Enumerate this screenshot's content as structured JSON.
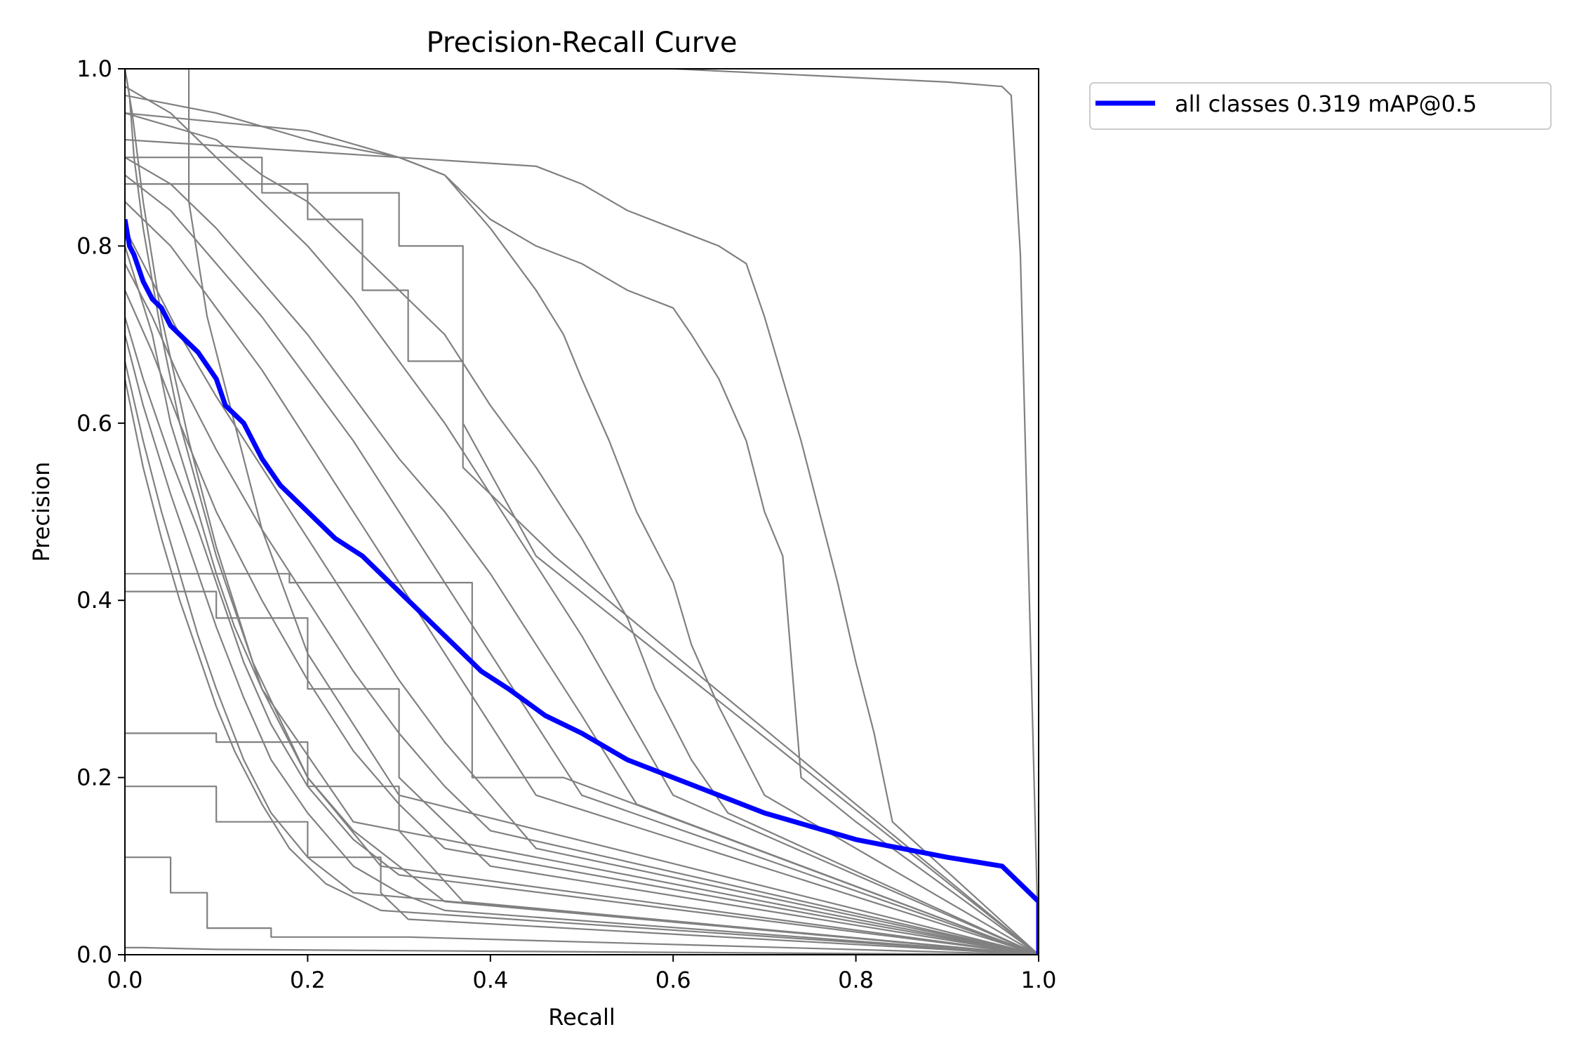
{
  "chart_data": {
    "type": "line",
    "title": "Precision-Recall Curve",
    "xlabel": "Recall",
    "ylabel": "Precision",
    "xlim": [
      0,
      1
    ],
    "ylim": [
      0,
      1
    ],
    "xticks": [
      "0.0",
      "0.2",
      "0.4",
      "0.6",
      "0.8",
      "1.0"
    ],
    "yticks": [
      "0.0",
      "0.2",
      "0.4",
      "0.6",
      "0.8",
      "1.0"
    ],
    "grid": false,
    "legend_placement": "outside-top-right",
    "colors": {
      "all_classes": "#0000ff",
      "per_class": "#808080"
    },
    "legend": [
      {
        "label": "all classes 0.319 mAP@0.5",
        "color": "#0000ff"
      }
    ],
    "series": [
      {
        "name": "all classes 0.319 mAP@0.5",
        "color": "#0000ff",
        "x": [
          0.0,
          0.005,
          0.01,
          0.02,
          0.03,
          0.04,
          0.05,
          0.06,
          0.08,
          0.1,
          0.11,
          0.13,
          0.15,
          0.17,
          0.2,
          0.23,
          0.26,
          0.29,
          0.31,
          0.33,
          0.37,
          0.39,
          0.42,
          0.46,
          0.5,
          0.55,
          0.6,
          0.65,
          0.7,
          0.75,
          0.8,
          0.9,
          0.96,
          0.97,
          1.0,
          1.0
        ],
        "y": [
          0.83,
          0.8,
          0.79,
          0.76,
          0.74,
          0.73,
          0.71,
          0.7,
          0.68,
          0.65,
          0.62,
          0.6,
          0.56,
          0.53,
          0.5,
          0.47,
          0.45,
          0.42,
          0.4,
          0.38,
          0.34,
          0.32,
          0.3,
          0.27,
          0.25,
          0.22,
          0.2,
          0.18,
          0.16,
          0.145,
          0.13,
          0.11,
          0.1,
          0.09,
          0.06,
          0.0
        ]
      },
      {
        "x": [
          0.0,
          0.5,
          0.6,
          0.7,
          0.8,
          0.9,
          0.96,
          0.97,
          0.98,
          1.0
        ],
        "y": [
          1.0,
          1.0,
          1.0,
          0.995,
          0.99,
          0.985,
          0.98,
          0.97,
          0.79,
          0.0
        ]
      },
      {
        "x": [
          0.0,
          0.3,
          0.45,
          0.5,
          0.55,
          0.6,
          0.65,
          0.68,
          0.7,
          0.72,
          0.74,
          0.76,
          0.78,
          0.8,
          0.82,
          0.84,
          1.0
        ],
        "y": [
          0.92,
          0.9,
          0.89,
          0.87,
          0.84,
          0.82,
          0.8,
          0.78,
          0.72,
          0.65,
          0.58,
          0.5,
          0.42,
          0.33,
          0.25,
          0.15,
          0.0
        ]
      },
      {
        "x": [
          0.0,
          0.2,
          0.3,
          0.35,
          0.4,
          0.45,
          0.5,
          0.55,
          0.6,
          0.62,
          0.65,
          0.68,
          0.7,
          0.72,
          0.74,
          0.8,
          1.0
        ],
        "y": [
          0.95,
          0.93,
          0.9,
          0.88,
          0.83,
          0.8,
          0.78,
          0.75,
          0.73,
          0.7,
          0.65,
          0.58,
          0.5,
          0.45,
          0.2,
          0.15,
          0.0
        ]
      },
      {
        "x": [
          0.0,
          0.1,
          0.2,
          0.3,
          0.35,
          0.4,
          0.45,
          0.48,
          0.5,
          0.53,
          0.56,
          0.6,
          0.62,
          0.65,
          0.68,
          0.7,
          1.0
        ],
        "y": [
          0.97,
          0.95,
          0.92,
          0.9,
          0.88,
          0.82,
          0.75,
          0.7,
          0.65,
          0.58,
          0.5,
          0.42,
          0.35,
          0.28,
          0.22,
          0.18,
          0.0
        ]
      },
      {
        "x": [
          0.0,
          0.1,
          0.15,
          0.2,
          0.25,
          0.3,
          0.35,
          0.4,
          0.45,
          0.5,
          0.55,
          0.58,
          0.62,
          0.66,
          1.0
        ],
        "y": [
          0.95,
          0.92,
          0.88,
          0.85,
          0.8,
          0.75,
          0.7,
          0.62,
          0.55,
          0.47,
          0.38,
          0.3,
          0.22,
          0.16,
          0.0
        ]
      },
      {
        "x": [
          0.0,
          0.05,
          0.1,
          0.15,
          0.2,
          0.25,
          0.3,
          0.35,
          0.4,
          0.45,
          0.5,
          0.55,
          0.6,
          1.0
        ],
        "y": [
          0.98,
          0.95,
          0.9,
          0.85,
          0.8,
          0.74,
          0.67,
          0.6,
          0.52,
          0.44,
          0.36,
          0.27,
          0.18,
          0.0
        ]
      },
      {
        "x": [
          0.0,
          0.05,
          0.1,
          0.15,
          0.2,
          0.25,
          0.3,
          0.35,
          0.4,
          0.45,
          0.5,
          0.56,
          1.0
        ],
        "y": [
          0.9,
          0.87,
          0.82,
          0.76,
          0.7,
          0.63,
          0.56,
          0.5,
          0.43,
          0.35,
          0.27,
          0.17,
          0.0
        ]
      },
      {
        "x": [
          0.0,
          0.05,
          0.1,
          0.15,
          0.2,
          0.25,
          0.3,
          0.35,
          0.4,
          0.45,
          0.5,
          1.0
        ],
        "y": [
          0.88,
          0.84,
          0.78,
          0.72,
          0.65,
          0.58,
          0.5,
          0.42,
          0.34,
          0.26,
          0.18,
          0.0
        ]
      },
      {
        "x": [
          0.0,
          0.05,
          0.1,
          0.15,
          0.2,
          0.25,
          0.3,
          0.35,
          0.4,
          0.45,
          1.0
        ],
        "y": [
          0.85,
          0.8,
          0.73,
          0.66,
          0.58,
          0.5,
          0.42,
          0.34,
          0.26,
          0.18,
          0.0
        ]
      },
      {
        "x": [
          0.0,
          0.03,
          0.06,
          0.1,
          0.15,
          0.2,
          0.25,
          0.3,
          0.35,
          0.4,
          0.45,
          1.0
        ],
        "y": [
          0.82,
          0.76,
          0.7,
          0.63,
          0.55,
          0.47,
          0.39,
          0.31,
          0.24,
          0.18,
          0.12,
          0.0
        ]
      },
      {
        "x": [
          0.0,
          0.03,
          0.06,
          0.1,
          0.15,
          0.2,
          0.25,
          0.3,
          0.35,
          0.4,
          1.0
        ],
        "y": [
          0.78,
          0.72,
          0.65,
          0.57,
          0.48,
          0.4,
          0.32,
          0.25,
          0.19,
          0.14,
          0.0
        ]
      },
      {
        "x": [
          0.0,
          0.03,
          0.06,
          0.1,
          0.15,
          0.2,
          0.25,
          0.3,
          0.35,
          1.0
        ],
        "y": [
          0.75,
          0.68,
          0.6,
          0.5,
          0.4,
          0.31,
          0.23,
          0.17,
          0.12,
          0.0
        ]
      },
      {
        "x": [
          0.0,
          0.02,
          0.05,
          0.08,
          0.1,
          0.13,
          0.16,
          0.2,
          0.25,
          0.3,
          1.0
        ],
        "y": [
          0.72,
          0.65,
          0.56,
          0.48,
          0.42,
          0.33,
          0.26,
          0.19,
          0.13,
          0.09,
          0.0
        ]
      },
      {
        "x": [
          0.0,
          0.02,
          0.05,
          0.08,
          0.1,
          0.13,
          0.16,
          0.2,
          0.25,
          0.3,
          0.35,
          1.0
        ],
        "y": [
          0.7,
          0.62,
          0.52,
          0.43,
          0.37,
          0.29,
          0.22,
          0.16,
          0.1,
          0.07,
          0.05,
          0.0
        ]
      },
      {
        "x": [
          0.0,
          0.02,
          0.04,
          0.06,
          0.08,
          0.1,
          0.13,
          0.16,
          0.2,
          0.25,
          1.0
        ],
        "y": [
          0.67,
          0.58,
          0.5,
          0.43,
          0.36,
          0.3,
          0.22,
          0.16,
          0.11,
          0.07,
          0.0
        ]
      },
      {
        "x": [
          0.0,
          0.02,
          0.04,
          0.06,
          0.08,
          0.1,
          0.12,
          0.15,
          0.18,
          0.22,
          0.28,
          1.0
        ],
        "y": [
          0.65,
          0.55,
          0.47,
          0.4,
          0.34,
          0.28,
          0.23,
          0.17,
          0.12,
          0.08,
          0.05,
          0.0
        ]
      },
      {
        "x": [
          0.0,
          0.03,
          0.05,
          0.08,
          0.1,
          0.12,
          0.15,
          0.18,
          0.2,
          0.25,
          0.3,
          0.35,
          1.0
        ],
        "y": [
          0.8,
          0.7,
          0.6,
          0.5,
          0.43,
          0.37,
          0.3,
          0.24,
          0.2,
          0.14,
          0.1,
          0.06,
          0.0
        ]
      },
      {
        "x": [
          0.0,
          0.15,
          0.15,
          0.3,
          0.3,
          0.37,
          0.37,
          0.45,
          1.0
        ],
        "y": [
          0.9,
          0.9,
          0.86,
          0.86,
          0.8,
          0.8,
          0.6,
          0.45,
          0.0
        ]
      },
      {
        "x": [
          0.0,
          0.2,
          0.2,
          0.26,
          0.26,
          0.31,
          0.31,
          0.37,
          0.37,
          0.47,
          1.0
        ],
        "y": [
          0.87,
          0.87,
          0.83,
          0.83,
          0.75,
          0.75,
          0.67,
          0.67,
          0.55,
          0.45,
          0.0
        ]
      },
      {
        "x": [
          0.0,
          0.18,
          0.18,
          0.29,
          0.29,
          0.38,
          0.38,
          0.48,
          1.0
        ],
        "y": [
          0.43,
          0.43,
          0.42,
          0.42,
          0.42,
          0.42,
          0.2,
          0.2,
          0.0
        ]
      },
      {
        "x": [
          0.0,
          0.1,
          0.1,
          0.2,
          0.2,
          0.3,
          0.3,
          0.4,
          1.0
        ],
        "y": [
          0.41,
          0.41,
          0.38,
          0.38,
          0.3,
          0.3,
          0.2,
          0.1,
          0.0
        ]
      },
      {
        "x": [
          0.0,
          0.1,
          0.1,
          0.2,
          0.2,
          0.3,
          0.3,
          0.37,
          1.0
        ],
        "y": [
          0.25,
          0.25,
          0.24,
          0.24,
          0.19,
          0.19,
          0.14,
          0.06,
          0.0
        ]
      },
      {
        "x": [
          0.0,
          0.1,
          0.1,
          0.2,
          0.2,
          0.28,
          0.28,
          0.31,
          1.0
        ],
        "y": [
          0.19,
          0.19,
          0.15,
          0.15,
          0.11,
          0.11,
          0.07,
          0.04,
          0.0
        ]
      },
      {
        "x": [
          0.0,
          0.05,
          0.05,
          0.09,
          0.09,
          0.16,
          0.16,
          0.31,
          1.0
        ],
        "y": [
          0.11,
          0.11,
          0.07,
          0.07,
          0.03,
          0.03,
          0.02,
          0.02,
          0.0
        ]
      },
      {
        "x": [
          0.0,
          0.02,
          0.1,
          0.4,
          1.0
        ],
        "y": [
          0.008,
          0.008,
          0.006,
          0.004,
          0.0
        ]
      },
      {
        "x": [
          0.0,
          0.005,
          0.01,
          0.02,
          0.04,
          0.06,
          0.1,
          0.15,
          0.25,
          1.0
        ],
        "y": [
          1.0,
          0.97,
          0.9,
          0.82,
          0.7,
          0.6,
          0.45,
          0.3,
          0.15,
          0.0
        ]
      },
      {
        "x": [
          0.0,
          0.008,
          0.02,
          0.04,
          0.07,
          0.1,
          0.14,
          0.2,
          0.28,
          1.0
        ],
        "y": [
          1.0,
          0.95,
          0.85,
          0.72,
          0.58,
          0.46,
          0.33,
          0.2,
          0.1,
          0.0
        ]
      },
      {
        "x": [
          0.07,
          0.07,
          0.09,
          0.12,
          0.15,
          0.2,
          0.3,
          1.0
        ],
        "y": [
          1.0,
          0.85,
          0.72,
          0.6,
          0.48,
          0.34,
          0.18,
          0.0
        ]
      }
    ]
  }
}
